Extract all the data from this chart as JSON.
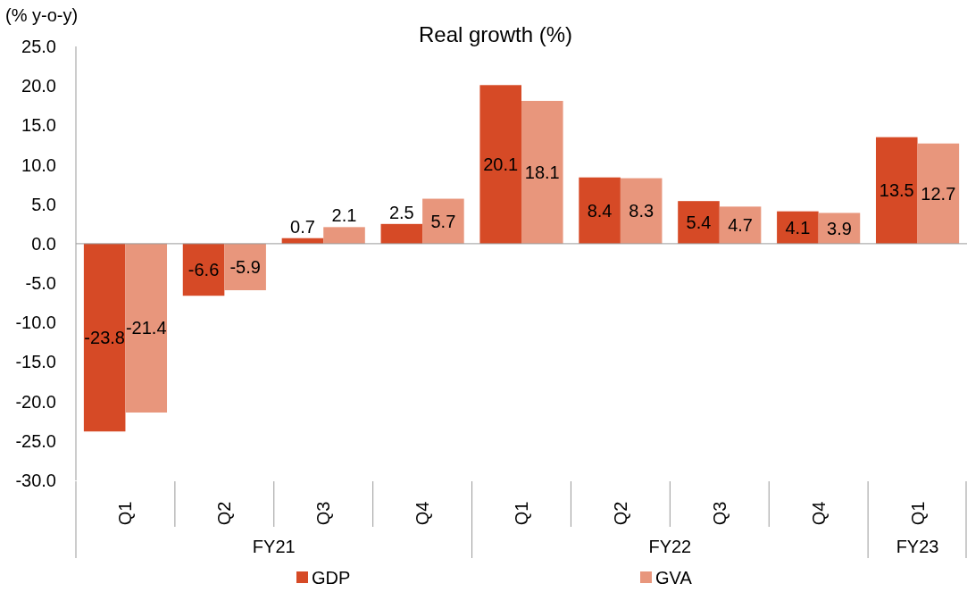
{
  "chart_data": {
    "type": "bar",
    "title": "Real growth (%)",
    "ylabel": "(% y-o-y)",
    "categories": [
      "Q1",
      "Q2",
      "Q3",
      "Q4",
      "Q1",
      "Q2",
      "Q3",
      "Q4",
      "Q1"
    ],
    "annotations": [
      "FY21",
      "FY22",
      "FY23"
    ],
    "series": [
      {
        "name": "GDP",
        "color": "#d64a26",
        "values": [
          -23.8,
          -6.6,
          0.7,
          2.5,
          20.1,
          8.4,
          5.4,
          4.1,
          13.5
        ]
      },
      {
        "name": "GVA",
        "color": "#e8967c",
        "values": [
          -21.4,
          -5.9,
          2.1,
          5.7,
          18.1,
          8.3,
          4.7,
          3.9,
          12.7
        ]
      }
    ],
    "ylim": [
      -30,
      25
    ],
    "yticks": [
      {
        "value": -30,
        "label": "-30.0"
      },
      {
        "value": -25,
        "label": "-25.0"
      },
      {
        "value": -20,
        "label": "-20.0"
      },
      {
        "value": -15,
        "label": "-15.0"
      },
      {
        "value": -10,
        "label": "-10.0"
      },
      {
        "value": -5,
        "label": "-5.0"
      },
      {
        "value": 0,
        "label": "0.0"
      },
      {
        "value": 5,
        "label": "5.0"
      },
      {
        "value": 10,
        "label": "10.0"
      },
      {
        "value": 15,
        "label": "15.0"
      },
      {
        "value": 20,
        "label": "20.0"
      },
      {
        "value": 25,
        "label": "25.0"
      }
    ],
    "data_labels": true,
    "legend": "bottom"
  }
}
